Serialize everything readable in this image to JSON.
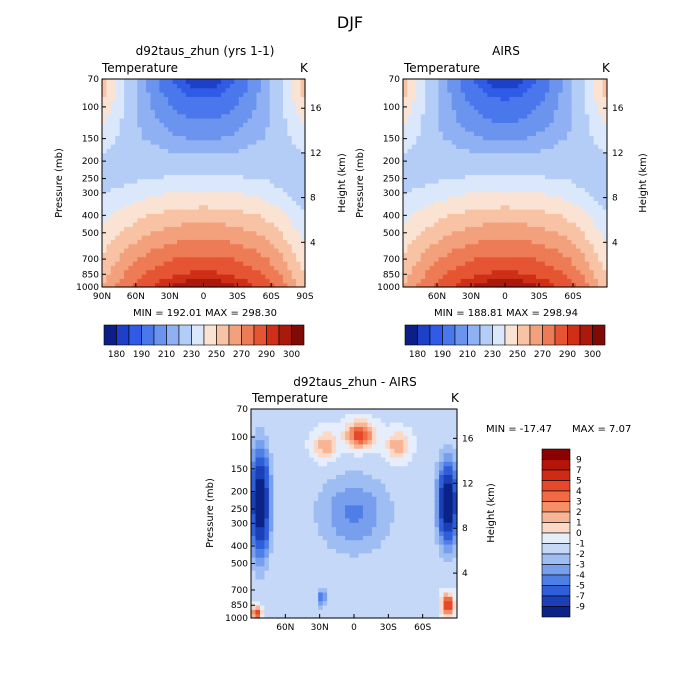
{
  "figure": {
    "title": "DJF"
  },
  "chart_data": [
    {
      "type": "heatmap",
      "title": "d92taus_zhun (yrs 1-1)",
      "subtitle": "Temperature",
      "units": "K",
      "ylabel": "Pressure (mb)",
      "y2label": "Height (km)",
      "x_ticks": [
        "90N",
        "60N",
        "30N",
        "0",
        "30S",
        "60S",
        "90S"
      ],
      "y_ticks": [
        "70",
        "100",
        "150",
        "200",
        "250",
        "300",
        "400",
        "500",
        "700",
        "850",
        "1000"
      ],
      "y2_ticks": [
        "4",
        "8",
        "12",
        "16"
      ],
      "stats": "MIN = 192.01   MAX = 298.30",
      "colorbar_labels": [
        "180",
        "190",
        "210",
        "230",
        "250",
        "270",
        "290",
        "300"
      ],
      "x_range": [
        90,
        -90
      ],
      "y_range_mb": [
        1000,
        70
      ]
    },
    {
      "type": "heatmap",
      "title": "AIRS",
      "subtitle": "Temperature",
      "units": "K",
      "ylabel": "Pressure (mb)",
      "y2label": "Height (km)",
      "x_ticks": [
        "60N",
        "30N",
        "0",
        "30S",
        "60S"
      ],
      "y_ticks": [
        "70",
        "100",
        "150",
        "200",
        "250",
        "300",
        "400",
        "500",
        "700",
        "850",
        "1000"
      ],
      "y2_ticks": [
        "4",
        "8",
        "12",
        "16"
      ],
      "stats": "MIN = 188.81   MAX = 298.94",
      "colorbar_labels": [
        "180",
        "190",
        "210",
        "230",
        "250",
        "270",
        "290",
        "300"
      ],
      "x_range": [
        90,
        -90
      ],
      "y_range_mb": [
        1000,
        70
      ]
    },
    {
      "type": "heatmap",
      "title": "d92taus_zhun - AIRS",
      "subtitle": "Temperature",
      "units": "K",
      "ylabel": "Pressure (mb)",
      "y2label": "Height (km)",
      "x_ticks": [
        "60N",
        "30N",
        "0",
        "30S",
        "60S"
      ],
      "y_ticks": [
        "70",
        "100",
        "150",
        "200",
        "250",
        "300",
        "400",
        "500",
        "700",
        "850",
        "1000"
      ],
      "y2_ticks": [
        "4",
        "8",
        "12",
        "16"
      ],
      "stats_min": "MIN = -17.47",
      "stats_max": "MAX =    7.07",
      "colorbar_labels": [
        "9",
        "7",
        "5",
        "4",
        "3",
        "2",
        "1",
        "0",
        "-1",
        "-2",
        "-3",
        "-4",
        "-5",
        "-7",
        "-9"
      ],
      "x_range": [
        90,
        -90
      ],
      "y_range_mb": [
        1000,
        70
      ]
    }
  ],
  "colors": {
    "temp_scale": [
      "#0b1f86",
      "#1e3fc8",
      "#2f5be6",
      "#4a78ec",
      "#6a94ee",
      "#8fb0f2",
      "#b4cdf7",
      "#dbe8fb",
      "#fbe3d4",
      "#f8c2a5",
      "#f3a07c",
      "#ed7b55",
      "#e55533",
      "#cf2f17",
      "#a91a0d",
      "#7e0b06"
    ],
    "diff_scale": [
      "#8b0000",
      "#b3150a",
      "#d02a14",
      "#e5482a",
      "#f06a44",
      "#f48f68",
      "#f7b595",
      "#fbd9c6",
      "#e6eefc",
      "#c6d8f8",
      "#9ebdf2",
      "#779fed",
      "#4e7fe7",
      "#2f5ed9",
      "#1a3fb6",
      "#0b2386"
    ]
  }
}
